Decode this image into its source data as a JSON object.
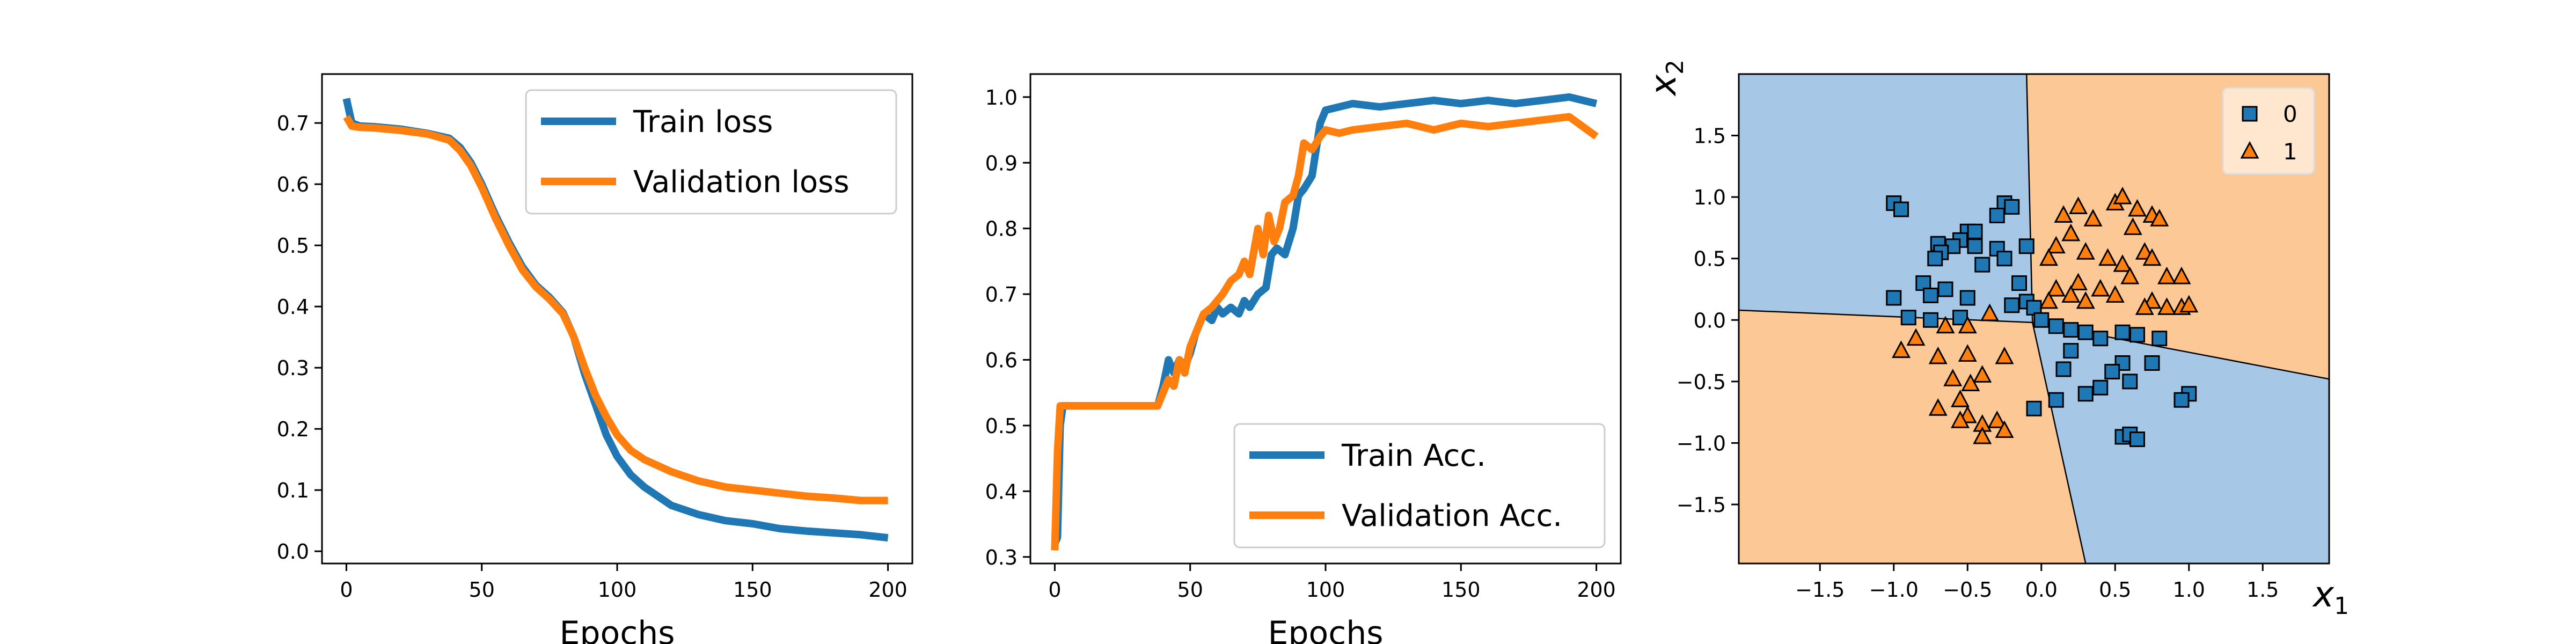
{
  "colors": {
    "train": "#1f77b4",
    "validation": "#ff7f0e",
    "region_class0": "#a6c8e6",
    "region_class1": "#fcc895",
    "axes": "#000000"
  },
  "chart_data": [
    {
      "type": "line",
      "id": "loss",
      "title": "",
      "xlabel": "Epochs",
      "ylabel": "",
      "xlim": [
        -9,
        209
      ],
      "ylim": [
        -0.02,
        0.78
      ],
      "xticks": [
        0,
        50,
        100,
        150,
        200
      ],
      "yticks": [
        0.0,
        0.1,
        0.2,
        0.3,
        0.4,
        0.5,
        0.6,
        0.7
      ],
      "ytick_labels": [
        "0.0",
        "0.1",
        "0.2",
        "0.3",
        "0.4",
        "0.5",
        "0.6",
        "0.7"
      ],
      "grid": false,
      "legend": "top-right",
      "series": [
        {
          "name": "Train loss",
          "color": "#1f77b4",
          "x": [
            0,
            2,
            5,
            10,
            20,
            30,
            38,
            42,
            46,
            50,
            55,
            60,
            65,
            70,
            75,
            80,
            84,
            88,
            92,
            96,
            100,
            105,
            110,
            115,
            120,
            130,
            140,
            150,
            160,
            170,
            180,
            190,
            200
          ],
          "y": [
            0.74,
            0.7,
            0.695,
            0.694,
            0.69,
            0.683,
            0.675,
            0.66,
            0.635,
            0.6,
            0.55,
            0.505,
            0.465,
            0.435,
            0.415,
            0.39,
            0.35,
            0.29,
            0.24,
            0.19,
            0.155,
            0.125,
            0.105,
            0.09,
            0.075,
            0.06,
            0.05,
            0.045,
            0.037,
            0.033,
            0.03,
            0.027,
            0.022
          ]
        },
        {
          "name": "Validation loss",
          "color": "#ff7f0e",
          "x": [
            0,
            2,
            5,
            10,
            20,
            30,
            38,
            42,
            46,
            50,
            55,
            60,
            65,
            70,
            75,
            80,
            84,
            88,
            92,
            96,
            100,
            105,
            110,
            115,
            120,
            130,
            140,
            150,
            160,
            170,
            180,
            190,
            200
          ],
          "y": [
            0.71,
            0.695,
            0.693,
            0.692,
            0.688,
            0.682,
            0.672,
            0.655,
            0.63,
            0.595,
            0.545,
            0.5,
            0.46,
            0.432,
            0.412,
            0.388,
            0.35,
            0.3,
            0.255,
            0.22,
            0.19,
            0.165,
            0.15,
            0.14,
            0.13,
            0.115,
            0.105,
            0.1,
            0.095,
            0.09,
            0.087,
            0.083,
            0.083
          ]
        }
      ]
    },
    {
      "type": "line",
      "id": "accuracy",
      "title": "",
      "xlabel": "Epochs",
      "ylabel": "",
      "xlim": [
        -9,
        209
      ],
      "ylim": [
        0.29,
        1.035
      ],
      "xticks": [
        0,
        50,
        100,
        150,
        200
      ],
      "yticks": [
        0.3,
        0.4,
        0.5,
        0.6,
        0.7,
        0.8,
        0.9,
        1.0
      ],
      "ytick_labels": [
        "0.3",
        "0.4",
        "0.5",
        "0.6",
        "0.7",
        "0.8",
        "0.9",
        "1.0"
      ],
      "grid": false,
      "legend": "bottom-right",
      "series": [
        {
          "name": "Train Acc.",
          "color": "#1f77b4",
          "x": [
            0,
            1,
            2,
            3,
            5,
            10,
            20,
            30,
            38,
            40,
            42,
            44,
            46,
            48,
            50,
            52,
            55,
            58,
            60,
            62,
            65,
            68,
            70,
            72,
            75,
            78,
            80,
            82,
            85,
            88,
            90,
            92,
            95,
            98,
            100,
            105,
            110,
            120,
            130,
            140,
            150,
            160,
            170,
            180,
            190,
            200
          ],
          "y": [
            0.32,
            0.33,
            0.5,
            0.53,
            0.53,
            0.53,
            0.53,
            0.53,
            0.53,
            0.56,
            0.6,
            0.58,
            0.6,
            0.59,
            0.61,
            0.64,
            0.67,
            0.66,
            0.68,
            0.67,
            0.68,
            0.67,
            0.69,
            0.68,
            0.7,
            0.71,
            0.76,
            0.77,
            0.76,
            0.8,
            0.85,
            0.86,
            0.88,
            0.96,
            0.98,
            0.985,
            0.99,
            0.985,
            0.99,
            0.995,
            0.99,
            0.995,
            0.99,
            0.995,
            1.0,
            0.99
          ]
        },
        {
          "name": "Validation Acc.",
          "color": "#ff7f0e",
          "x": [
            0,
            1,
            2,
            3,
            5,
            10,
            20,
            30,
            38,
            40,
            42,
            44,
            46,
            48,
            50,
            52,
            55,
            58,
            60,
            62,
            65,
            68,
            70,
            72,
            75,
            77,
            79,
            81,
            83,
            85,
            88,
            90,
            92,
            95,
            98,
            100,
            105,
            110,
            120,
            130,
            140,
            150,
            160,
            170,
            180,
            190,
            200
          ],
          "y": [
            0.31,
            0.46,
            0.53,
            0.53,
            0.53,
            0.53,
            0.53,
            0.53,
            0.53,
            0.55,
            0.57,
            0.56,
            0.6,
            0.58,
            0.62,
            0.64,
            0.67,
            0.68,
            0.69,
            0.7,
            0.72,
            0.73,
            0.75,
            0.73,
            0.8,
            0.76,
            0.82,
            0.78,
            0.8,
            0.84,
            0.85,
            0.88,
            0.93,
            0.92,
            0.94,
            0.95,
            0.945,
            0.95,
            0.955,
            0.96,
            0.95,
            0.96,
            0.955,
            0.96,
            0.965,
            0.97,
            0.94
          ]
        }
      ]
    },
    {
      "type": "scatter",
      "id": "decision-regions",
      "title": "",
      "xlabel": "x1",
      "ylabel": "x2",
      "xlim": [
        -2.05,
        1.95
      ],
      "ylim": [
        -1.98,
        2.0
      ],
      "xticks": [
        -1.5,
        -1.0,
        -0.5,
        0.0,
        0.5,
        1.0,
        1.5
      ],
      "xtick_labels": [
        "−1.5",
        "−1.0",
        "−0.5",
        "0.0",
        "0.5",
        "1.0",
        "1.5"
      ],
      "yticks": [
        -1.5,
        -1.0,
        -0.5,
        0.0,
        0.5,
        1.0,
        1.5
      ],
      "ytick_labels": [
        "−1.5",
        "−1.0",
        "−0.5",
        "0.0",
        "0.5",
        "1.0",
        "1.5"
      ],
      "grid": false,
      "legend": "top-right",
      "decision_boundary": {
        "center": [
          -0.06,
          -0.02
        ],
        "rays": [
          [
            -0.1,
            2.0
          ],
          [
            1.95,
            -0.48
          ],
          [
            0.3,
            -1.98
          ],
          [
            -2.05,
            0.08
          ]
        ],
        "regions_counterclockwise_from_top": [
          1,
          0,
          1,
          0
        ]
      },
      "series": [
        {
          "name": "0",
          "marker": "square",
          "color": "#1f77b4",
          "points": [
            [
              -1.0,
              0.95
            ],
            [
              -0.95,
              0.9
            ],
            [
              -0.25,
              0.95
            ],
            [
              -0.2,
              0.92
            ],
            [
              -0.3,
              0.85
            ],
            [
              -0.5,
              0.72
            ],
            [
              -0.45,
              0.72
            ],
            [
              -0.55,
              0.65
            ],
            [
              -0.7,
              0.62
            ],
            [
              -0.45,
              0.6
            ],
            [
              -0.6,
              0.6
            ],
            [
              -0.1,
              0.6
            ],
            [
              -0.3,
              0.58
            ],
            [
              -0.68,
              0.55
            ],
            [
              -0.72,
              0.5
            ],
            [
              -0.25,
              0.5
            ],
            [
              -0.4,
              0.45
            ],
            [
              -0.8,
              0.3
            ],
            [
              -0.65,
              0.25
            ],
            [
              -0.15,
              0.3
            ],
            [
              -0.75,
              0.2
            ],
            [
              -0.5,
              0.18
            ],
            [
              -1.0,
              0.18
            ],
            [
              -0.1,
              0.15
            ],
            [
              -0.2,
              0.12
            ],
            [
              -0.05,
              0.1
            ],
            [
              -0.9,
              0.02
            ],
            [
              -0.55,
              0.02
            ],
            [
              -0.75,
              0.0
            ],
            [
              0.0,
              0.0
            ],
            [
              0.1,
              -0.05
            ],
            [
              0.2,
              -0.08
            ],
            [
              0.3,
              -0.1
            ],
            [
              0.55,
              -0.1
            ],
            [
              0.65,
              -0.12
            ],
            [
              0.4,
              -0.15
            ],
            [
              0.8,
              -0.15
            ],
            [
              0.2,
              -0.25
            ],
            [
              0.55,
              -0.35
            ],
            [
              0.75,
              -0.35
            ],
            [
              0.15,
              -0.4
            ],
            [
              0.48,
              -0.42
            ],
            [
              0.6,
              -0.5
            ],
            [
              0.4,
              -0.55
            ],
            [
              0.3,
              -0.6
            ],
            [
              0.1,
              -0.65
            ],
            [
              1.0,
              -0.6
            ],
            [
              0.95,
              -0.65
            ],
            [
              -0.05,
              -0.72
            ],
            [
              0.55,
              -0.95
            ],
            [
              0.6,
              -0.93
            ],
            [
              0.65,
              -0.97
            ]
          ]
        },
        {
          "name": "1",
          "marker": "triangle",
          "color": "#ff7f0e",
          "points": [
            [
              0.15,
              0.85
            ],
            [
              0.25,
              0.92
            ],
            [
              0.35,
              0.82
            ],
            [
              0.5,
              0.95
            ],
            [
              0.55,
              1.0
            ],
            [
              0.65,
              0.9
            ],
            [
              0.75,
              0.85
            ],
            [
              0.8,
              0.82
            ],
            [
              0.62,
              0.75
            ],
            [
              0.2,
              0.7
            ],
            [
              0.1,
              0.6
            ],
            [
              0.3,
              0.55
            ],
            [
              0.05,
              0.5
            ],
            [
              0.45,
              0.5
            ],
            [
              0.55,
              0.45
            ],
            [
              0.7,
              0.55
            ],
            [
              0.75,
              0.5
            ],
            [
              0.95,
              0.35
            ],
            [
              0.85,
              0.35
            ],
            [
              0.6,
              0.35
            ],
            [
              0.25,
              0.3
            ],
            [
              0.1,
              0.25
            ],
            [
              0.4,
              0.25
            ],
            [
              0.5,
              0.2
            ],
            [
              0.2,
              0.2
            ],
            [
              0.05,
              0.15
            ],
            [
              0.3,
              0.15
            ],
            [
              0.75,
              0.15
            ],
            [
              0.95,
              0.1
            ],
            [
              1.0,
              0.12
            ],
            [
              0.85,
              0.1
            ],
            [
              0.7,
              0.1
            ],
            [
              -0.35,
              0.05
            ],
            [
              -0.5,
              -0.05
            ],
            [
              -0.65,
              -0.05
            ],
            [
              -0.85,
              -0.15
            ],
            [
              -0.95,
              -0.25
            ],
            [
              -0.5,
              -0.28
            ],
            [
              -0.7,
              -0.3
            ],
            [
              -0.25,
              -0.3
            ],
            [
              -0.4,
              -0.45
            ],
            [
              -0.6,
              -0.48
            ],
            [
              -0.48,
              -0.52
            ],
            [
              -0.55,
              -0.65
            ],
            [
              -0.7,
              -0.72
            ],
            [
              -0.5,
              -0.78
            ],
            [
              -0.55,
              -0.82
            ],
            [
              -0.4,
              -0.85
            ],
            [
              -0.3,
              -0.82
            ],
            [
              -0.25,
              -0.9
            ],
            [
              -0.4,
              -0.95
            ]
          ]
        }
      ]
    }
  ]
}
